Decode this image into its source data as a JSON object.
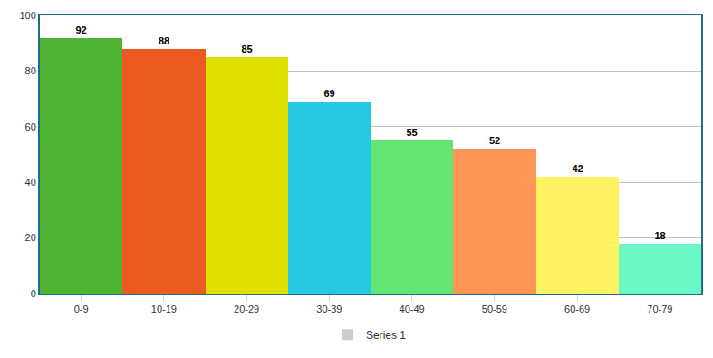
{
  "chart_data": {
    "type": "bar",
    "categories": [
      "0-9",
      "10-19",
      "20-29",
      "30-39",
      "40-49",
      "50-59",
      "60-69",
      "70-79"
    ],
    "series": [
      {
        "name": "Series 1",
        "color": "#cccccc",
        "colors": [
          "#4fb334",
          "#eb5a1e",
          "#dfe000",
          "#25c9e3",
          "#64e472",
          "#ff9655",
          "#fff263",
          "#6af9c4"
        ],
        "values": [
          92,
          88,
          85,
          69,
          55,
          52,
          42,
          18
        ]
      }
    ],
    "ylim": [
      0,
      100
    ],
    "yticks": [
      0,
      20,
      40,
      60,
      80,
      100
    ],
    "grid": true,
    "data_labels": true,
    "legend": "bottom"
  }
}
